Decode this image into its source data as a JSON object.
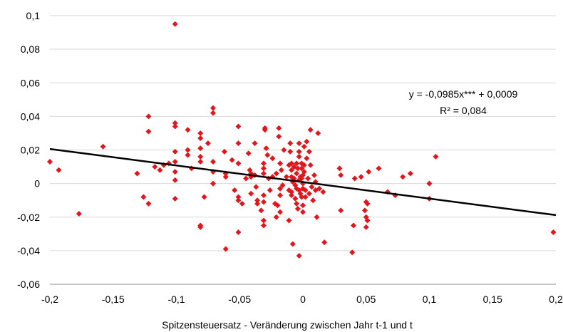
{
  "chart_data": {
    "type": "scatter",
    "title": "",
    "xlabel": "Spitzensteuersatz - Veränderung zwischen Jahr t-1 und t",
    "ylabel": "",
    "xlim": [
      -0.2,
      0.2
    ],
    "ylim": [
      -0.06,
      0.1
    ],
    "x_ticks": [
      -0.2,
      -0.15,
      -0.1,
      -0.05,
      0,
      0.05,
      0.1,
      0.15,
      0.2
    ],
    "y_ticks": [
      -0.06,
      -0.04,
      -0.02,
      0,
      0.02,
      0.04,
      0.06,
      0.08,
      0.1
    ],
    "x_tick_labels": [
      "-0,2",
      "-0,15",
      "-0,1",
      "-0,05",
      "0",
      "0,05",
      "0,1",
      "0,15",
      "0,2"
    ],
    "y_tick_labels": [
      "-0,06",
      "-0,04",
      "-0,02",
      "0",
      "0,02",
      "0,04",
      "0,06",
      "0,08",
      "0,1"
    ],
    "grid": "horizontal",
    "marker_color": "#e3161c",
    "trendline_color": "#000000",
    "trendline": {
      "slope": -0.0985,
      "intercept": 0.0009
    },
    "annotation": {
      "equation": "y = -0,0985x*** + 0,0009",
      "r2": "R² = 0,084"
    },
    "points": [
      [
        -0.2,
        0.013
      ],
      [
        -0.193,
        0.008
      ],
      [
        -0.177,
        -0.018
      ],
      [
        -0.158,
        0.022
      ],
      [
        -0.131,
        0.006
      ],
      [
        -0.126,
        -0.008
      ],
      [
        -0.122,
        -0.012
      ],
      [
        -0.122,
        0.04
      ],
      [
        -0.122,
        0.031
      ],
      [
        -0.117,
        0.01
      ],
      [
        -0.113,
        0.008
      ],
      [
        -0.11,
        0.011
      ],
      [
        -0.106,
        0.012
      ],
      [
        -0.101,
        0.095
      ],
      [
        -0.101,
        0.036
      ],
      [
        -0.101,
        0.034
      ],
      [
        -0.101,
        0.019
      ],
      [
        -0.101,
        0.013
      ],
      [
        -0.101,
        0.007
      ],
      [
        -0.101,
        0.002
      ],
      [
        -0.101,
        -0.009
      ],
      [
        -0.091,
        0.032
      ],
      [
        -0.091,
        0.02
      ],
      [
        -0.091,
        0.017
      ],
      [
        -0.088,
        0.009
      ],
      [
        -0.081,
        0.03
      ],
      [
        -0.081,
        0.027
      ],
      [
        -0.081,
        0.021
      ],
      [
        -0.081,
        0.016
      ],
      [
        -0.081,
        0.013
      ],
      [
        -0.081,
        -0.025
      ],
      [
        -0.081,
        -0.026
      ],
      [
        -0.078,
        -0.008
      ],
      [
        -0.075,
        0.024
      ],
      [
        -0.071,
        0.045
      ],
      [
        -0.071,
        0.042
      ],
      [
        -0.071,
        0.013
      ],
      [
        -0.071,
        0.007
      ],
      [
        -0.071,
        0.0
      ],
      [
        -0.062,
        0.019
      ],
      [
        -0.061,
        0.006
      ],
      [
        -0.061,
        0.004
      ],
      [
        -0.061,
        -0.039
      ],
      [
        -0.056,
        0.014
      ],
      [
        -0.054,
        -0.004
      ],
      [
        -0.051,
        0.034
      ],
      [
        -0.051,
        0.024
      ],
      [
        -0.051,
        0.012
      ],
      [
        -0.051,
        -0.008
      ],
      [
        -0.051,
        -0.01
      ],
      [
        -0.051,
        -0.029
      ],
      [
        -0.048,
        -0.012
      ],
      [
        -0.045,
        0.003
      ],
      [
        -0.043,
        0.018
      ],
      [
        -0.042,
        0.008
      ],
      [
        -0.041,
        0.006
      ],
      [
        -0.041,
        0.004
      ],
      [
        -0.041,
        -0.006
      ],
      [
        -0.038,
        0.024
      ],
      [
        -0.038,
        0.005
      ],
      [
        -0.037,
        -0.002
      ],
      [
        -0.036,
        -0.01
      ],
      [
        -0.036,
        -0.012
      ],
      [
        -0.033,
        -0.016
      ],
      [
        -0.031,
        0.012
      ],
      [
        -0.031,
        0.009
      ],
      [
        -0.031,
        0.006
      ],
      [
        -0.031,
        -0.007
      ],
      [
        -0.031,
        -0.011
      ],
      [
        -0.031,
        -0.022
      ],
      [
        -0.031,
        -0.025
      ],
      [
        -0.03,
        0.033
      ],
      [
        -0.03,
        0.032
      ],
      [
        -0.029,
        0.021
      ],
      [
        -0.028,
        0.017
      ],
      [
        -0.027,
        0.003
      ],
      [
        -0.026,
        -0.004
      ],
      [
        -0.024,
        0.015
      ],
      [
        -0.024,
        0.004
      ],
      [
        -0.022,
        -0.012
      ],
      [
        -0.021,
        0.006
      ],
      [
        -0.021,
        -0.02
      ],
      [
        -0.02,
        -0.013
      ],
      [
        -0.019,
        0.033
      ],
      [
        -0.019,
        0.028
      ],
      [
        -0.018,
        0.012
      ],
      [
        -0.018,
        -0.003
      ],
      [
        -0.018,
        -0.007
      ],
      [
        -0.018,
        -0.017
      ],
      [
        -0.017,
        0.008
      ],
      [
        -0.016,
        -0.001
      ],
      [
        -0.015,
        0.02
      ],
      [
        -0.013,
        0.004
      ],
      [
        -0.011,
        0.011
      ],
      [
        -0.011,
        -0.004
      ],
      [
        -0.011,
        -0.022
      ],
      [
        -0.01,
        0.024
      ],
      [
        -0.01,
        0.019
      ],
      [
        -0.009,
        0.012
      ],
      [
        -0.009,
        0.008
      ],
      [
        -0.009,
        0.004
      ],
      [
        -0.009,
        -0.005
      ],
      [
        -0.009,
        -0.007
      ],
      [
        -0.008,
        -0.036
      ],
      [
        -0.008,
        0.001
      ],
      [
        -0.007,
        0.003
      ],
      [
        -0.007,
        0.01
      ],
      [
        -0.006,
        -0.001
      ],
      [
        -0.006,
        -0.009
      ],
      [
        -0.005,
        0.012
      ],
      [
        -0.005,
        0.006
      ],
      [
        -0.005,
        -0.003
      ],
      [
        -0.005,
        -0.012
      ],
      [
        -0.004,
        0.009
      ],
      [
        -0.004,
        -0.015
      ],
      [
        -0.003,
        0.002
      ],
      [
        -0.003,
        -0.004
      ],
      [
        -0.003,
        0.024
      ],
      [
        -0.003,
        0.019
      ],
      [
        -0.003,
        0.016
      ],
      [
        -0.003,
        -0.043
      ],
      [
        -0.002,
        0.004
      ],
      [
        -0.002,
        -0.006
      ],
      [
        -0.001,
        0.012
      ],
      [
        -0.001,
        0.009
      ],
      [
        -0.001,
        0.003
      ],
      [
        -0.001,
        -0.008
      ],
      [
        0.0,
        0.005
      ],
      [
        0.0,
        0.0
      ],
      [
        0.0,
        -0.003
      ],
      [
        0.0,
        -0.013
      ],
      [
        0.0,
        -0.017
      ],
      [
        0.001,
        0.022
      ],
      [
        0.001,
        0.011
      ],
      [
        0.001,
        0.007
      ],
      [
        0.002,
        -0.004
      ],
      [
        0.002,
        -0.008
      ],
      [
        0.003,
        0.025
      ],
      [
        0.003,
        0.015
      ],
      [
        0.004,
        0.003
      ],
      [
        0.005,
        0.019
      ],
      [
        0.005,
        -0.006
      ],
      [
        0.006,
        0.032
      ],
      [
        0.006,
        0.011
      ],
      [
        0.007,
        -0.002
      ],
      [
        0.008,
        -0.01
      ],
      [
        0.009,
        0.005
      ],
      [
        0.01,
        0.001
      ],
      [
        0.01,
        -0.004
      ],
      [
        0.011,
        -0.02
      ],
      [
        0.012,
        0.03
      ],
      [
        0.013,
        -0.003
      ],
      [
        0.016,
        -0.005
      ],
      [
        0.017,
        -0.035
      ],
      [
        0.029,
        0.009
      ],
      [
        0.03,
        0.005
      ],
      [
        0.03,
        -0.016
      ],
      [
        0.039,
        -0.041
      ],
      [
        0.04,
        -0.025
      ],
      [
        0.041,
        0.003
      ],
      [
        0.046,
        0.004
      ],
      [
        0.049,
        -0.016
      ],
      [
        0.05,
        -0.011
      ],
      [
        0.05,
        -0.02
      ],
      [
        0.05,
        -0.026
      ],
      [
        0.051,
        -0.012
      ],
      [
        0.051,
        -0.022
      ],
      [
        0.052,
        0.007
      ],
      [
        0.06,
        0.009
      ],
      [
        0.067,
        -0.005
      ],
      [
        0.073,
        -0.007
      ],
      [
        0.079,
        0.004
      ],
      [
        0.085,
        0.006
      ],
      [
        0.1,
        0.0
      ],
      [
        0.1,
        -0.009
      ],
      [
        0.105,
        0.016
      ],
      [
        0.198,
        -0.029
      ]
    ]
  }
}
